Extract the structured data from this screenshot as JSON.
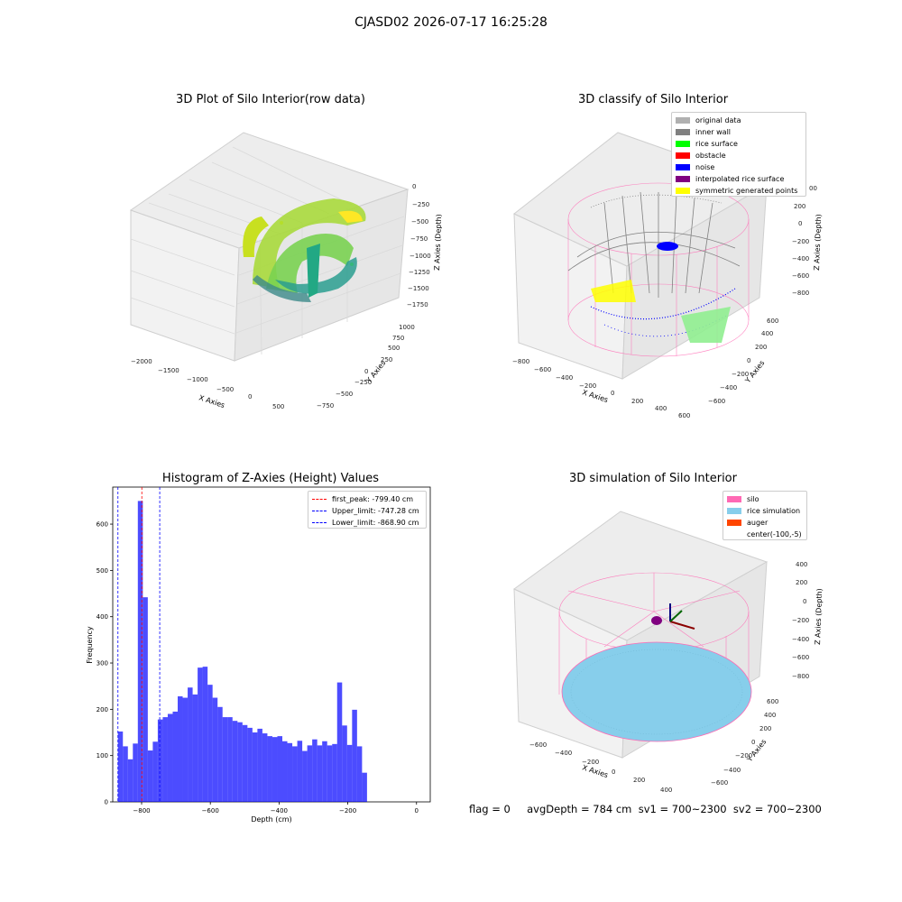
{
  "figure": {
    "suptitle": "CJASD02 2026-07-17 16:25:28",
    "footer": "flag = 0     avgDepth = 784 cm  sv1 = 700~2300  sv2 = 700~2300"
  },
  "colors": {
    "pane": "#f2f2f2",
    "grid": "#d9d9d9",
    "hist_bar": "#0000ff",
    "silo": "#ff69b4",
    "rice": "#87ceeb",
    "auger": "#ff4500",
    "noise": "#0000ff",
    "wall": "#808080"
  },
  "chart_data": [
    {
      "type": "scatter",
      "projection": "3d",
      "title": "3D Plot of Silo Interior(row data)",
      "xlabel": "X Axies",
      "ylabel": "Y Axies",
      "zlabel": "Z Axies (Depth)",
      "x_ticks": [
        "−2000",
        "−1500",
        "−1000",
        "−500",
        "0",
        "500"
      ],
      "y_ticks": [
        "−750",
        "−500",
        "−250",
        "0",
        "250",
        "500",
        "750",
        "1000"
      ],
      "z_ticks": [
        "0",
        "−250",
        "−500",
        "−750",
        "−1000",
        "−1250",
        "−1500",
        "−1750"
      ],
      "colormap": "viridis",
      "grid": true
    },
    {
      "type": "scatter",
      "projection": "3d",
      "title": "3D classify of Silo Interior",
      "xlabel": "X Axies",
      "ylabel": "Y Axies",
      "zlabel": "Z Axies (Depth)",
      "x_ticks": [
        "−800",
        "−600",
        "−400",
        "−200",
        "0",
        "200",
        "400",
        "600"
      ],
      "y_ticks": [
        "−600",
        "−400",
        "−200",
        "0",
        "200",
        "400",
        "600"
      ],
      "z_ticks": [
        "200",
        "0",
        "−200",
        "−400",
        "−600",
        "−800"
      ],
      "z_tick_partial": "00",
      "legend_position": "upper-right",
      "legend": [
        {
          "label": "original data",
          "color": "#b0b0b0"
        },
        {
          "label": "inner wall",
          "color": "#808080"
        },
        {
          "label": "rice surface",
          "color": "#00ff00"
        },
        {
          "label": "obstacle",
          "color": "#ff0000"
        },
        {
          "label": "noise",
          "color": "#0000ff"
        },
        {
          "label": "interpolated rice surface",
          "color": "#800080"
        },
        {
          "label": "symmetric generated points",
          "color": "#ffff00"
        }
      ],
      "grid": true
    },
    {
      "type": "bar",
      "title": "Histogram of Z-Axies (Height) Values",
      "xlabel": "Depth (cm)",
      "ylabel": "Frequency",
      "xlim": [
        -884,
        40
      ],
      "ylim": [
        0,
        680
      ],
      "x_ticks": [
        -800,
        -600,
        -400,
        -200,
        0
      ],
      "x_tick_labels": [
        "−800",
        "−600",
        "−400",
        "−200",
        "0"
      ],
      "y_ticks": [
        0,
        100,
        200,
        300,
        400,
        500,
        600
      ],
      "bin_start": -869,
      "bin_width": 14.5,
      "values": [
        152,
        120,
        92,
        126,
        650,
        442,
        111,
        130,
        178,
        183,
        190,
        195,
        228,
        225,
        247,
        232,
        290,
        292,
        253,
        225,
        205,
        183,
        183,
        175,
        172,
        166,
        160,
        150,
        158,
        148,
        142,
        140,
        142,
        131,
        127,
        120,
        132,
        110,
        122,
        135,
        122,
        131,
        122,
        125,
        258,
        165,
        123,
        199,
        120,
        63
      ],
      "reference_lines": [
        {
          "label": "first_peak: -799.40 cm",
          "x": -799.4,
          "color": "#ff0000"
        },
        {
          "label": "Upper_limit: -747.28 cm",
          "x": -747.28,
          "color": "#0000ff"
        },
        {
          "label": "Lower_limit: -868.90 cm",
          "x": -868.9,
          "color": "#0000ff"
        }
      ],
      "legend_position": "upper-right",
      "grid": false
    },
    {
      "type": "scatter",
      "projection": "3d",
      "title": "3D simulation of Silo Interior",
      "xlabel": "X Axies",
      "ylabel": "Y Axies",
      "zlabel": "Z Axies (Depth)",
      "x_ticks": [
        "−600",
        "−400",
        "−200",
        "0",
        "200",
        "400"
      ],
      "y_ticks": [
        "−600",
        "−400",
        "−200",
        "0",
        "200",
        "400",
        "600"
      ],
      "z_ticks": [
        "400",
        "200",
        "0",
        "−200",
        "−400",
        "−600",
        "−800"
      ],
      "legend_position": "upper-right",
      "legend": [
        {
          "label": "silo",
          "color": "#ff69b4"
        },
        {
          "label": "rice simulation",
          "color": "#87ceeb"
        },
        {
          "label": "auger",
          "color": "#ff4500"
        },
        {
          "label": "center(-100,-5)",
          "color": ""
        }
      ],
      "grid": true
    }
  ]
}
